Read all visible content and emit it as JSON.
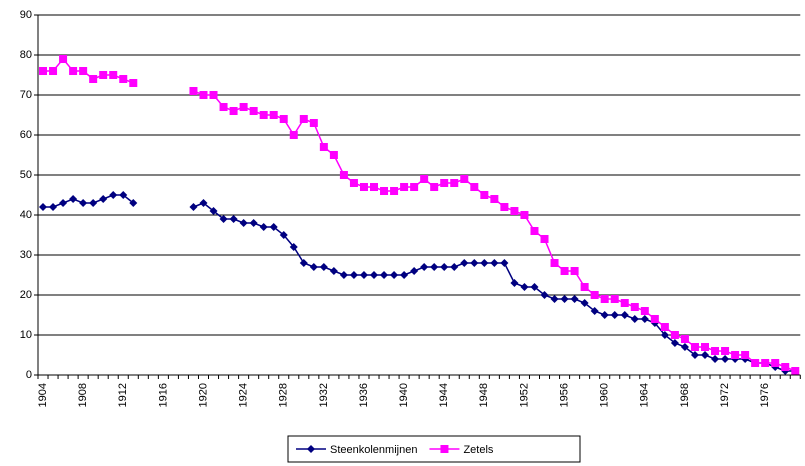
{
  "chart_data": {
    "type": "line",
    "categories": [
      "1904",
      null,
      null,
      null,
      "1908",
      null,
      null,
      null,
      "1912",
      null,
      null,
      null,
      "1916",
      null,
      null,
      null,
      "1920",
      null,
      null,
      null,
      "1924",
      null,
      null,
      null,
      "1928",
      null,
      null,
      null,
      "1932",
      null,
      null,
      null,
      "1936",
      null,
      null,
      null,
      "1940",
      null,
      null,
      null,
      "1944",
      null,
      null,
      null,
      "1948",
      null,
      null,
      null,
      "1952",
      null,
      null,
      null,
      "1956",
      null,
      null,
      null,
      "1960",
      null,
      null,
      null,
      "1964",
      null,
      null,
      null,
      "1968",
      null,
      null,
      null,
      "1972",
      null,
      null,
      null,
      "1976",
      null,
      null,
      null
    ],
    "series": [
      {
        "name": "Steenkolenmijnen",
        "color": "#000080",
        "marker": "diamond",
        "values": [
          42,
          42,
          43,
          44,
          43,
          43,
          44,
          45,
          45,
          43,
          null,
          null,
          null,
          null,
          null,
          42,
          43,
          41,
          39,
          39,
          38,
          38,
          37,
          37,
          35,
          32,
          28,
          27,
          27,
          26,
          25,
          25,
          25,
          25,
          25,
          25,
          25,
          26,
          27,
          27,
          27,
          27,
          28,
          28,
          28,
          28,
          28,
          23,
          22,
          22,
          20,
          19,
          19,
          19,
          18,
          16,
          15,
          15,
          15,
          14,
          14,
          13,
          10,
          8,
          7,
          5,
          5,
          4,
          4,
          4,
          4,
          3,
          3,
          2,
          1,
          1
        ]
      },
      {
        "name": "Zetels",
        "color": "#ff00ff",
        "marker": "square",
        "values": [
          76,
          76,
          79,
          76,
          76,
          74,
          75,
          75,
          74,
          73,
          null,
          null,
          null,
          null,
          null,
          71,
          70,
          70,
          67,
          66,
          67,
          66,
          65,
          65,
          64,
          60,
          64,
          63,
          57,
          55,
          50,
          48,
          47,
          47,
          46,
          46,
          47,
          47,
          49,
          47,
          48,
          48,
          49,
          47,
          45,
          44,
          42,
          41,
          40,
          36,
          34,
          28,
          26,
          26,
          22,
          20,
          19,
          19,
          18,
          17,
          16,
          14,
          12,
          10,
          9,
          7,
          7,
          6,
          6,
          5,
          5,
          3,
          3,
          3,
          2,
          1
        ]
      }
    ],
    "ylim": [
      0,
      90
    ],
    "yticks": [
      0,
      10,
      20,
      30,
      40,
      50,
      60,
      70,
      80,
      90
    ],
    "grid": true,
    "legend": "bottom"
  }
}
